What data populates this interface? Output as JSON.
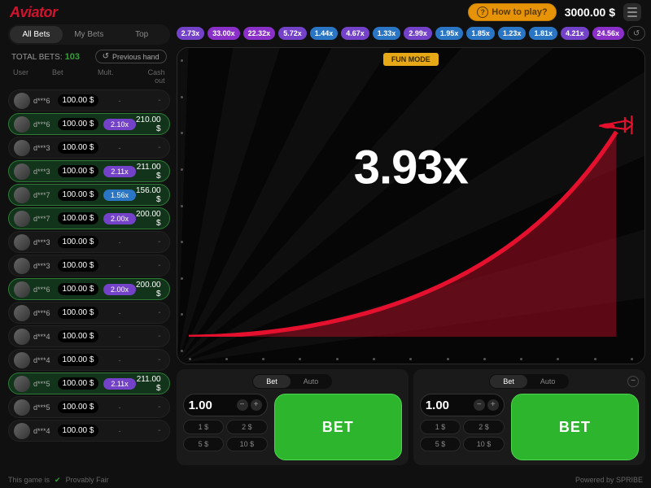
{
  "header": {
    "logo": "Aviator",
    "howto": "How to play?",
    "balance": "3000.00 $"
  },
  "left": {
    "tabs": [
      "All Bets",
      "My Bets",
      "Top"
    ],
    "active_tab": 0,
    "total_label": "TOTAL BETS:",
    "total_count": "103",
    "prev_btn": "Previous hand",
    "columns": [
      "User",
      "Bet",
      "Mult.",
      "Cash out"
    ],
    "rows": [
      {
        "user": "d***6",
        "bet": "100.00 $",
        "mult": "-",
        "cash": "-",
        "win": false
      },
      {
        "user": "d***6",
        "bet": "100.00 $",
        "mult": "2.10x",
        "mult_color": "#7342c9",
        "cash": "210.00 $",
        "win": true
      },
      {
        "user": "d***3",
        "bet": "100.00 $",
        "mult": "-",
        "cash": "-",
        "win": false
      },
      {
        "user": "d***3",
        "bet": "100.00 $",
        "mult": "2.11x",
        "mult_color": "#7342c9",
        "cash": "211.00 $",
        "win": true
      },
      {
        "user": "d***7",
        "bet": "100.00 $",
        "mult": "1.56x",
        "mult_color": "#2a76c4",
        "cash": "156.00 $",
        "win": true
      },
      {
        "user": "d***7",
        "bet": "100.00 $",
        "mult": "2.00x",
        "mult_color": "#7342c9",
        "cash": "200.00 $",
        "win": true
      },
      {
        "user": "d***3",
        "bet": "100.00 $",
        "mult": "-",
        "cash": "-",
        "win": false
      },
      {
        "user": "d***3",
        "bet": "100.00 $",
        "mult": "-",
        "cash": "-",
        "win": false
      },
      {
        "user": "d***6",
        "bet": "100.00 $",
        "mult": "2.00x",
        "mult_color": "#7342c9",
        "cash": "200.00 $",
        "win": true
      },
      {
        "user": "d***6",
        "bet": "100.00 $",
        "mult": "-",
        "cash": "-",
        "win": false
      },
      {
        "user": "d***4",
        "bet": "100.00 $",
        "mult": "-",
        "cash": "-",
        "win": false
      },
      {
        "user": "d***4",
        "bet": "100.00 $",
        "mult": "-",
        "cash": "-",
        "win": false
      },
      {
        "user": "d***5",
        "bet": "100.00 $",
        "mult": "2.11x",
        "mult_color": "#7342c9",
        "cash": "211.00 $",
        "win": true
      },
      {
        "user": "d***5",
        "bet": "100.00 $",
        "mult": "-",
        "cash": "-",
        "win": false
      },
      {
        "user": "d***4",
        "bet": "100.00 $",
        "mult": "-",
        "cash": "-",
        "win": false
      }
    ]
  },
  "history": [
    {
      "v": "2.73x",
      "c": "#7342c9"
    },
    {
      "v": "33.00x",
      "c": "#8b2fc9"
    },
    {
      "v": "22.32x",
      "c": "#8b2fc9"
    },
    {
      "v": "5.72x",
      "c": "#7342c9"
    },
    {
      "v": "1.44x",
      "c": "#2a76c4"
    },
    {
      "v": "4.67x",
      "c": "#7342c9"
    },
    {
      "v": "1.33x",
      "c": "#2a76c4"
    },
    {
      "v": "2.99x",
      "c": "#7342c9"
    },
    {
      "v": "1.95x",
      "c": "#2a76c4"
    },
    {
      "v": "1.85x",
      "c": "#2a76c4"
    },
    {
      "v": "1.23x",
      "c": "#2a76c4"
    },
    {
      "v": "1.81x",
      "c": "#2a76c4"
    },
    {
      "v": "4.21x",
      "c": "#7342c9"
    },
    {
      "v": "24.56x",
      "c": "#8b2fc9"
    }
  ],
  "game": {
    "fun_mode": "FUN MODE",
    "multiplier": "3.93x",
    "curve_color": "#e4102e",
    "fill_color": "rgba(180,10,35,0.5)",
    "plane_color": "#e4102e"
  },
  "panel": {
    "tabs": [
      "Bet",
      "Auto"
    ],
    "stake": "1.00",
    "chips": [
      "1 $",
      "2 $",
      "5 $",
      "10 $"
    ],
    "bet_label": "BET"
  },
  "footer": {
    "pf": "Provably Fair",
    "pre": "This game is",
    "powered": "Powered by SPRIBE"
  }
}
